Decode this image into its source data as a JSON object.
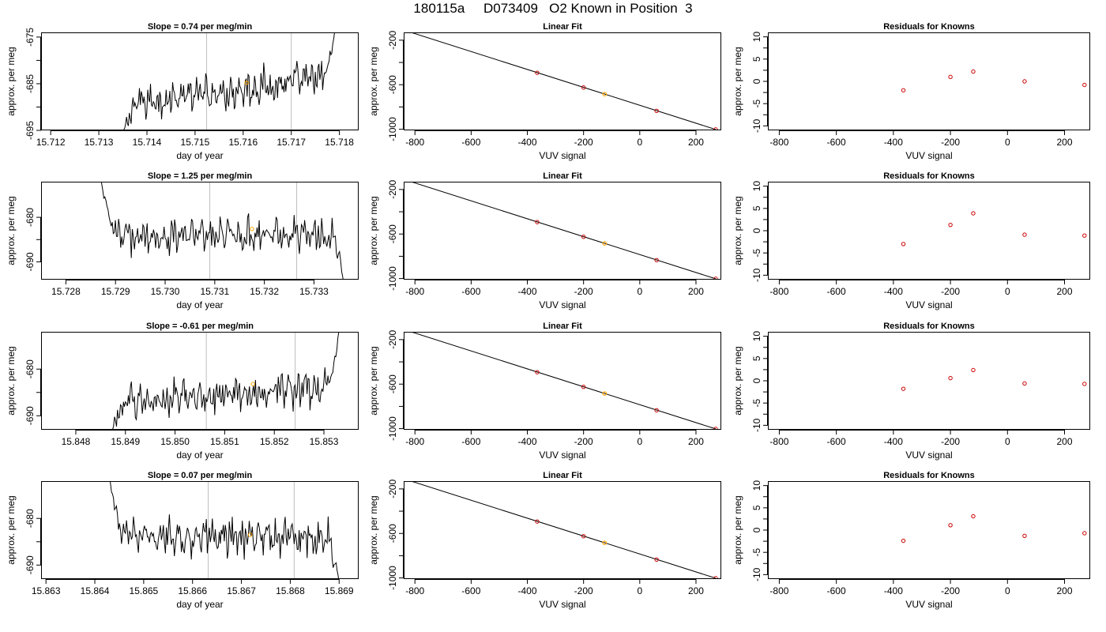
{
  "page": {
    "title": "180115a     D073409   O2 Known in Position  3"
  },
  "colors": {
    "trace": "#000000",
    "marker_orange": "#ffa500",
    "marker_red": "#cc0000",
    "vline": "#bebebe"
  },
  "chart_data": [
    {
      "type": "line",
      "title": "Slope =  0.74  per meg/min",
      "xlabel": "day of year",
      "ylabel": "approx. per meg",
      "xlim": [
        15.7118,
        15.7184
      ],
      "ylim": [
        -695,
        -674
      ],
      "xticks": [
        "15.712",
        "15.713",
        "15.714",
        "15.715",
        "15.716",
        "15.717",
        "15.718"
      ],
      "yticks": [
        "-675",
        "-685",
        "-695"
      ],
      "vlines": [
        15.71524,
        15.717
      ],
      "start_x": 15.7135,
      "end_x": 15.7179,
      "start_y": -696,
      "end_y": -674,
      "base_y": -687.5,
      "trend_from": -689.5,
      "trend_to": -683.5,
      "highlight": {
        "x": 15.71607,
        "y": -684.8
      }
    },
    {
      "type": "scatter",
      "title": "Linear Fit",
      "xlabel": "VUV signal",
      "ylabel": "approx. per meg",
      "xlim": [
        -840,
        290
      ],
      "ylim": [
        -1010,
        -130
      ],
      "xticks": [
        "-800",
        "-600",
        "-400",
        "-200",
        "0",
        "200"
      ],
      "yticks": [
        "-200",
        "-600",
        "-1000"
      ],
      "fit_line": {
        "x": [
          -820,
          270
        ],
        "y": [
          -125,
          -1002
        ]
      },
      "points": [
        {
          "x": -365,
          "y": -493
        },
        {
          "x": -200,
          "y": -625
        },
        {
          "x": 60,
          "y": -835
        },
        {
          "x": 270,
          "y": -1002
        }
      ],
      "highlight": {
        "x": -125,
        "y": -685
      }
    },
    {
      "type": "scatter",
      "title": "Residuals for Knowns",
      "xlabel": "VUV signal",
      "ylabel": "approx. per meg",
      "xlim": [
        -840,
        290
      ],
      "ylim": [
        -11,
        11
      ],
      "xticks": [
        "-800",
        "-600",
        "-400",
        "-200",
        "0",
        "200"
      ],
      "yticks": [
        "-10",
        "-5",
        "0",
        "5",
        "10"
      ],
      "points": [
        {
          "x": -365,
          "y": -2
        },
        {
          "x": -200,
          "y": 1
        },
        {
          "x": -120,
          "y": 2.2
        },
        {
          "x": 60,
          "y": 0
        },
        {
          "x": 270,
          "y": -0.8
        }
      ]
    },
    {
      "type": "line",
      "title": "Slope =  1.25  per meg/min",
      "xlabel": "day of year",
      "ylabel": "approx. per meg",
      "xlim": [
        15.7275,
        15.7339
      ],
      "ylim": [
        -694,
        -672
      ],
      "xticks": [
        "15.728",
        "15.729",
        "15.730",
        "15.731",
        "15.732",
        "15.733"
      ],
      "yticks": [
        "-680",
        "-690"
      ],
      "vlines": [
        15.7309,
        15.73265
      ],
      "start_x": 15.7287,
      "end_x": 15.7336,
      "start_y": -671,
      "end_y": -695,
      "base_y": -684,
      "trend_from": -684.5,
      "trend_to": -683.5,
      "highlight": {
        "x": 15.73175,
        "y": -682.6
      }
    },
    {
      "type": "scatter",
      "title": "Linear Fit",
      "xlabel": "VUV signal",
      "ylabel": "approx. per meg",
      "xlim": [
        -840,
        290
      ],
      "ylim": [
        -1010,
        -130
      ],
      "xticks": [
        "-800",
        "-600",
        "-400",
        "-200",
        "0",
        "200"
      ],
      "yticks": [
        "-200",
        "-600",
        "-1000"
      ],
      "fit_line": {
        "x": [
          -820,
          270
        ],
        "y": [
          -125,
          -1002
        ]
      },
      "points": [
        {
          "x": -365,
          "y": -493
        },
        {
          "x": -200,
          "y": -625
        },
        {
          "x": 60,
          "y": -835
        },
        {
          "x": 270,
          "y": -1002
        }
      ],
      "highlight": {
        "x": -125,
        "y": -685
      }
    },
    {
      "type": "scatter",
      "title": "Residuals for Knowns",
      "xlabel": "VUV signal",
      "ylabel": "approx. per meg",
      "xlim": [
        -840,
        290
      ],
      "ylim": [
        -11,
        11
      ],
      "xticks": [
        "-800",
        "-600",
        "-400",
        "-200",
        "0",
        "200"
      ],
      "yticks": [
        "-10",
        "-5",
        "0",
        "5",
        "10"
      ],
      "points": [
        {
          "x": -365,
          "y": -3
        },
        {
          "x": -200,
          "y": 1.3
        },
        {
          "x": -120,
          "y": 3.9
        },
        {
          "x": 60,
          "y": -0.9
        },
        {
          "x": 270,
          "y": -1.1
        }
      ]
    },
    {
      "type": "line",
      "title": "Slope =  -0.61  per meg/min",
      "xlabel": "day of year",
      "ylabel": "approx. per meg",
      "xlim": [
        15.8473,
        15.8537
      ],
      "ylim": [
        -693,
        -672
      ],
      "xticks": [
        "15.848",
        "15.849",
        "15.850",
        "15.851",
        "15.852",
        "15.853"
      ],
      "yticks": [
        "-680",
        "-690"
      ],
      "vlines": [
        15.85063,
        15.85242
      ],
      "start_x": 15.8487,
      "end_x": 15.8533,
      "start_y": -694,
      "end_y": -672,
      "base_y": -684,
      "trend_from": -687.5,
      "trend_to": -683.5,
      "highlight": {
        "x": 15.85157,
        "y": -683.2
      }
    },
    {
      "type": "scatter",
      "title": "Linear Fit",
      "xlabel": "VUV signal",
      "ylabel": "approx. per meg",
      "xlim": [
        -840,
        290
      ],
      "ylim": [
        -1010,
        -130
      ],
      "xticks": [
        "-800",
        "-600",
        "-400",
        "-200",
        "0",
        "200"
      ],
      "yticks": [
        "-200",
        "-600",
        "-1000"
      ],
      "fit_line": {
        "x": [
          -820,
          270
        ],
        "y": [
          -125,
          -1002
        ]
      },
      "points": [
        {
          "x": -365,
          "y": -493
        },
        {
          "x": -200,
          "y": -625
        },
        {
          "x": 60,
          "y": -835
        },
        {
          "x": 270,
          "y": -1002
        }
      ],
      "highlight": {
        "x": -125,
        "y": -685
      }
    },
    {
      "type": "scatter",
      "title": "Residuals for Knowns",
      "xlabel": "VUV signal",
      "ylabel": "approx. per meg",
      "xlim": [
        -840,
        290
      ],
      "ylim": [
        -11,
        11
      ],
      "xticks": [
        "-800",
        "-600",
        "-400",
        "-200",
        "0",
        "200"
      ],
      "yticks": [
        "-10",
        "-5",
        "0",
        "5",
        "10"
      ],
      "points": [
        {
          "x": -365,
          "y": -1.8
        },
        {
          "x": -200,
          "y": 0.6
        },
        {
          "x": -120,
          "y": 2.4
        },
        {
          "x": 60,
          "y": -0.6
        },
        {
          "x": 270,
          "y": -0.7
        }
      ]
    },
    {
      "type": "line",
      "title": "Slope =  0.07  per meg/min",
      "xlabel": "day of year",
      "ylabel": "approx. per meg",
      "xlim": [
        15.8629,
        15.8694
      ],
      "ylim": [
        -693,
        -672
      ],
      "xticks": [
        "15.863",
        "15.864",
        "15.865",
        "15.866",
        "15.867",
        "15.868",
        "15.869"
      ],
      "yticks": [
        "-680",
        "-690"
      ],
      "vlines": [
        15.86632,
        15.86808
      ],
      "start_x": 15.8643,
      "end_x": 15.869,
      "start_y": -671,
      "end_y": -694,
      "base_y": -684,
      "trend_from": -684,
      "trend_to": -684,
      "highlight": {
        "x": 15.86718,
        "y": -683.5
      }
    },
    {
      "type": "scatter",
      "title": "Linear Fit",
      "xlabel": "VUV signal",
      "ylabel": "approx. per meg",
      "xlim": [
        -840,
        290
      ],
      "ylim": [
        -1010,
        -130
      ],
      "xticks": [
        "-800",
        "-600",
        "-400",
        "-200",
        "0",
        "200"
      ],
      "yticks": [
        "-200",
        "-600",
        "-1000"
      ],
      "fit_line": {
        "x": [
          -820,
          270
        ],
        "y": [
          -125,
          -1002
        ]
      },
      "points": [
        {
          "x": -365,
          "y": -493
        },
        {
          "x": -200,
          "y": -625
        },
        {
          "x": 60,
          "y": -835
        },
        {
          "x": 270,
          "y": -1002
        }
      ],
      "highlight": {
        "x": -125,
        "y": -685
      }
    },
    {
      "type": "scatter",
      "title": "Residuals for Knowns",
      "xlabel": "VUV signal",
      "ylabel": "approx. per meg",
      "xlim": [
        -840,
        290
      ],
      "ylim": [
        -11,
        11
      ],
      "xticks": [
        "-800",
        "-600",
        "-400",
        "-200",
        "0",
        "200"
      ],
      "yticks": [
        "-10",
        "-5",
        "0",
        "5",
        "10"
      ],
      "points": [
        {
          "x": -365,
          "y": -2.4
        },
        {
          "x": -200,
          "y": 1.1
        },
        {
          "x": -120,
          "y": 3.1
        },
        {
          "x": 60,
          "y": -1.3
        },
        {
          "x": 270,
          "y": -0.7
        }
      ]
    }
  ]
}
